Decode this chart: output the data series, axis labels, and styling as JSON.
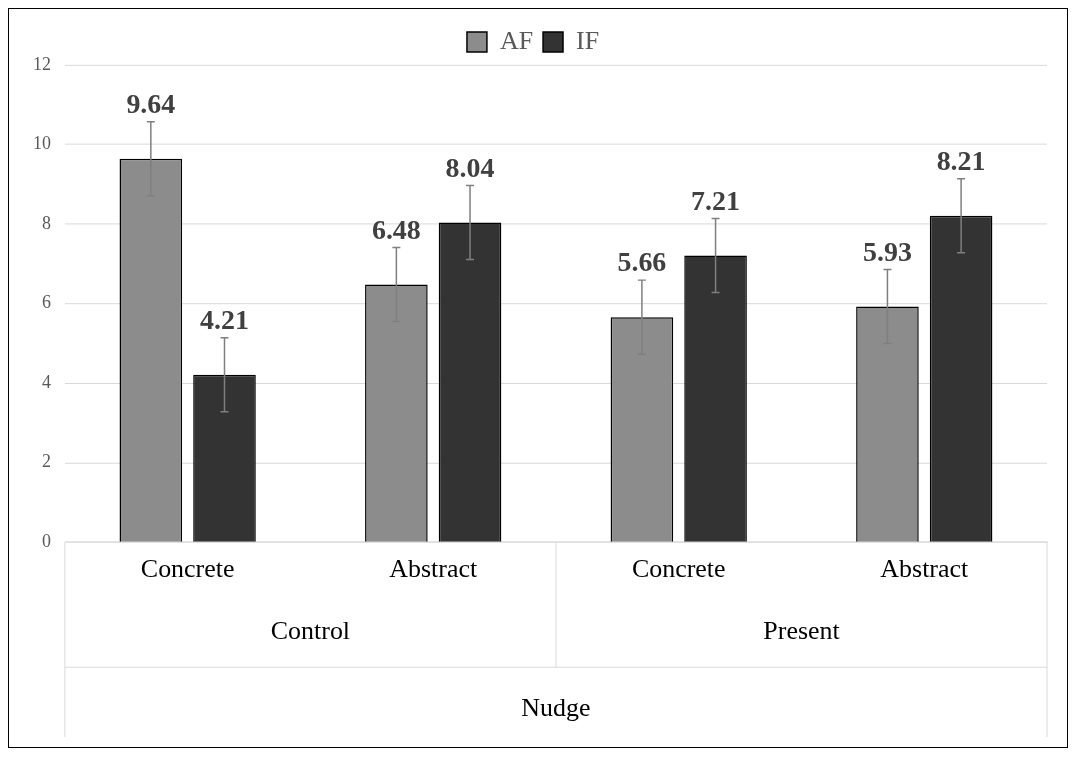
{
  "chart_data": {
    "type": "bar",
    "categories": [
      "Concrete",
      "Abstract",
      "Concrete",
      "Abstract"
    ],
    "series": [
      {
        "name": "AF",
        "color": "#8c8c8c",
        "values": [
          9.64,
          6.48,
          5.66,
          5.93
        ],
        "errors": [
          0.93,
          0.93,
          0.93,
          0.93
        ]
      },
      {
        "name": "IF",
        "color": "#333333",
        "values": [
          4.21,
          8.04,
          7.21,
          8.21
        ],
        "errors": [
          0.93,
          0.93,
          0.93,
          0.93
        ]
      }
    ],
    "xlabel": "Nudge",
    "annotations": [
      "Control",
      "Present"
    ],
    "ylim": [
      0,
      12
    ],
    "yticks": [
      0,
      2,
      4,
      6,
      8,
      10,
      12
    ],
    "grid": "y",
    "legend": "top",
    "data_labels": true
  }
}
